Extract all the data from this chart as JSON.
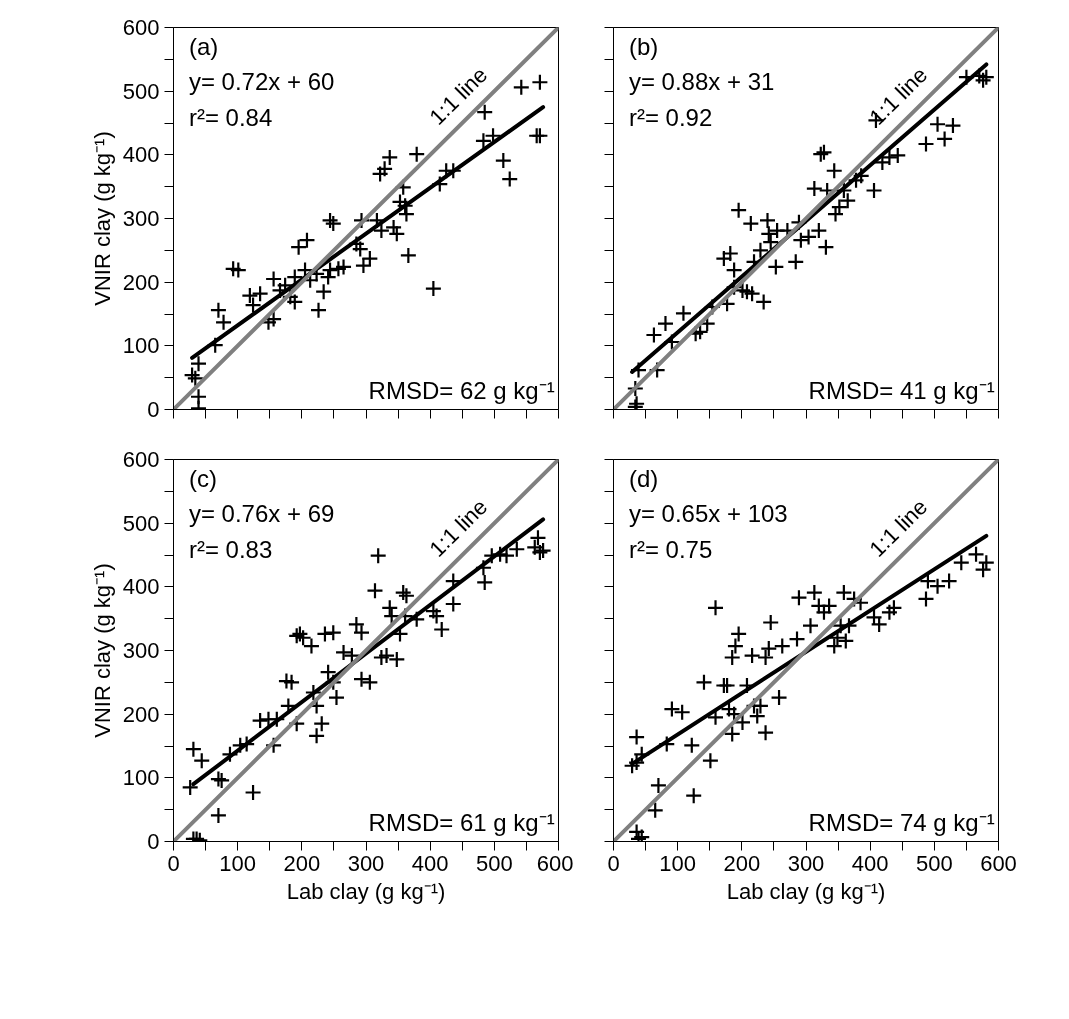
{
  "chart_data": [
    {
      "type": "scatter",
      "ylabel": "VNIR clay (g kg⁻¹)",
      "xlim": [
        0,
        600
      ],
      "ylim": [
        0,
        600
      ],
      "xticks": [
        0,
        {
          "value": 50,
          "label": null
        },
        100,
        {
          "value": 150,
          "label": null
        },
        200,
        {
          "value": 250,
          "label": null
        },
        300,
        {
          "value": 350,
          "label": null
        },
        400,
        {
          "value": 450,
          "label": null
        },
        500,
        {
          "value": 550,
          "label": null
        },
        600
      ],
      "yticks": [
        0,
        {
          "value": 50,
          "label": null
        },
        100,
        {
          "value": 150,
          "label": null
        },
        200,
        {
          "value": 250,
          "label": null
        },
        300,
        {
          "value": 350,
          "label": null
        },
        400,
        {
          "value": 450,
          "label": null
        },
        500,
        {
          "value": 550,
          "label": null
        },
        600
      ],
      "tick_labels": "y",
      "annotations": [
        "(a)",
        "y= 0.72x + 60",
        "r²= 0.84",
        "RMSD= 62 g kg⁻¹"
      ],
      "series": [
        {
          "marker": "cross",
          "color": "#000000",
          "x": [
            29,
            34,
            39,
            39,
            39,
            65,
            70,
            78,
            93,
            101,
            119,
            124,
            135,
            148,
            156,
            156,
            166,
            174,
            182,
            189,
            189,
            195,
            208,
            205,
            213,
            223,
            226,
            234,
            241,
            244,
            244,
            249,
            257,
            265,
            285,
            291,
            296,
            306,
            293,
            317,
            324,
            322,
            329,
            337,
            343,
            348,
            353,
            358,
            361,
            363,
            366,
            379,
            405,
            415,
            425,
            436,
            483,
            485,
            498,
            514,
            524,
            542,
            571,
            566,
            571
          ],
          "values": [
            54,
            49,
            72,
            2,
            20,
            101,
            156,
            137,
            221,
            219,
            179,
            164,
            182,
            137,
            142,
            205,
            187,
            195,
            177,
            169,
            208,
            255,
            266,
            219,
            203,
            213,
            156,
            185,
            208,
            219,
            297,
            292,
            221,
            224,
            260,
            252,
            226,
            237,
            297,
            297,
            281,
            370,
            378,
            396,
            286,
            276,
            326,
            349,
            320,
            307,
            242,
            401,
            190,
            354,
            375,
            375,
            422,
            467,
            430,
            391,
            362,
            506,
            514,
            430,
            430
          ]
        },
        {
          "type": "line",
          "color": "#000000",
          "x": [
            29,
            576
          ],
          "values": [
            81,
            475
          ]
        },
        {
          "type": "line",
          "name": "1:1 line",
          "color": "#808080",
          "x": [
            0,
            600
          ],
          "values": [
            0,
            600
          ]
        }
      ]
    },
    {
      "type": "scatter",
      "xlim": [
        0,
        600
      ],
      "ylim": [
        0,
        600
      ],
      "xticks": [
        0,
        {
          "value": 50,
          "label": null
        },
        100,
        {
          "value": 150,
          "label": null
        },
        200,
        {
          "value": 250,
          "label": null
        },
        300,
        {
          "value": 350,
          "label": null
        },
        400,
        {
          "value": 450,
          "label": null
        },
        500,
        {
          "value": 550,
          "label": null
        },
        600
      ],
      "yticks": [
        0,
        {
          "value": 50,
          "label": null
        },
        100,
        {
          "value": 150,
          "label": null
        },
        200,
        {
          "value": 250,
          "label": null
        },
        300,
        {
          "value": 350,
          "label": null
        },
        400,
        {
          "value": 450,
          "label": null
        },
        500,
        {
          "value": 550,
          "label": null
        },
        600
      ],
      "tick_labels": false,
      "annotations": [
        "(b)",
        "y= 0.88x + 31",
        "r²= 0.92",
        "RMSD= 41 g kg⁻¹"
      ],
      "series": [
        {
          "marker": "cross",
          "color": "#000000",
          "x": [
            34,
            36,
            34,
            39,
            68,
            63,
            81,
            91,
            109,
            128,
            135,
            146,
            154,
            177,
            188,
            201,
            208,
            216,
            234,
            195,
            172,
            182,
            188,
            214,
            219,
            229,
            240,
            242,
            245,
            253,
            255,
            271,
            284,
            289,
            292,
            304,
            320,
            331,
            313,
            323,
            328,
            333,
            344,
            346,
            352,
            359,
            365,
            378,
            386,
            406,
            419,
            430,
            443,
            409,
            487,
            505,
            516,
            529,
            550,
            570,
            576,
            581
          ],
          "values": [
            4,
            9,
            33,
            62,
            62,
            117,
            135,
            106,
            151,
            119,
            122,
            135,
            161,
            166,
            192,
            187,
            185,
            182,
            169,
            313,
            237,
            245,
            219,
            292,
            232,
            250,
            297,
            276,
            263,
            224,
            281,
            281,
            232,
            294,
            266,
            271,
            281,
            255,
            347,
            401,
            404,
            344,
            375,
            307,
            318,
            344,
            328,
            360,
            367,
            344,
            388,
            396,
            399,
            454,
            417,
            448,
            425,
            446,
            522,
            524,
            517,
            522
          ]
        },
        {
          "type": "line",
          "color": "#000000",
          "x": [
            29,
            581
          ],
          "values": [
            59,
            542
          ]
        },
        {
          "type": "line",
          "name": "1:1 line",
          "color": "#808080",
          "x": [
            0,
            600
          ],
          "values": [
            0,
            600
          ]
        }
      ]
    },
    {
      "type": "scatter",
      "xlabel": "Lab clay (g kg⁻¹)",
      "ylabel": "VNIR clay (g kg⁻¹)",
      "xlim": [
        0,
        600
      ],
      "ylim": [
        0,
        600
      ],
      "xticks": [
        0,
        {
          "value": 50,
          "label": null
        },
        100,
        {
          "value": 150,
          "label": null
        },
        200,
        {
          "value": 250,
          "label": null
        },
        300,
        {
          "value": 350,
          "label": null
        },
        400,
        {
          "value": 450,
          "label": null
        },
        500,
        {
          "value": 550,
          "label": null
        },
        600
      ],
      "yticks": [
        0,
        {
          "value": 50,
          "label": null
        },
        100,
        {
          "value": 150,
          "label": null
        },
        200,
        {
          "value": 250,
          "label": null
        },
        300,
        {
          "value": 350,
          "label": null
        },
        400,
        {
          "value": 450,
          "label": null
        },
        500,
        {
          "value": 550,
          "label": null
        },
        600
      ],
      "annotations": [
        "(c)",
        "y= 0.76x + 69",
        "r²= 0.83",
        "RMSD= 61 g kg⁻¹"
      ],
      "series": [
        {
          "marker": "cross",
          "color": "#000000",
          "x": [
            31,
            36,
            41,
            26,
            31,
            44,
            70,
            70,
            75,
            88,
            104,
            114,
            124,
            135,
            148,
            156,
            161,
            176,
            184,
            192,
            179,
            192,
            197,
            202,
            215,
            218,
            223,
            231,
            223,
            236,
            249,
            241,
            249,
            254,
            265,
            278,
            285,
            293,
            293,
            306,
            319,
            314,
            324,
            332,
            337,
            340,
            348,
            353,
            358,
            363,
            361,
            379,
            405,
            410,
            418,
            436,
            436,
            483,
            485,
            496,
            509,
            519,
            535,
            563,
            568,
            571,
            576
          ],
          "values": [
            4,
            4,
            2,
            85,
            145,
            127,
            41,
            98,
            96,
            137,
            151,
            153,
            77,
            190,
            192,
            151,
            192,
            252,
            250,
            185,
            213,
            323,
            326,
            320,
            307,
            234,
            213,
            185,
            166,
            326,
            328,
            266,
            250,
            226,
            297,
            292,
            341,
            328,
            255,
            250,
            449,
            394,
            289,
            292,
            367,
            354,
            286,
            326,
            391,
            386,
            354,
            349,
            362,
            354,
            333,
            409,
            373,
            430,
            407,
            449,
            451,
            449,
            459,
            462,
            477,
            454,
            457
          ]
        },
        {
          "type": "line",
          "color": "#000000",
          "x": [
            31,
            576
          ],
          "values": [
            90,
            506
          ]
        },
        {
          "type": "line",
          "name": "1:1 line",
          "color": "#808080",
          "x": [
            0,
            600
          ],
          "values": [
            0,
            600
          ]
        }
      ]
    },
    {
      "type": "scatter",
      "xlabel": "Lab clay (g kg⁻¹)",
      "xlim": [
        0,
        600
      ],
      "ylim": [
        0,
        600
      ],
      "xticks": [
        0,
        {
          "value": 50,
          "label": null
        },
        100,
        {
          "value": 150,
          "label": null
        },
        200,
        {
          "value": 250,
          "label": null
        },
        300,
        {
          "value": 350,
          "label": null
        },
        400,
        {
          "value": 450,
          "label": null
        },
        500,
        {
          "value": 550,
          "label": null
        },
        600
      ],
      "yticks": [
        0,
        {
          "value": 50,
          "label": null
        },
        100,
        {
          "value": 150,
          "label": null
        },
        200,
        {
          "value": 250,
          "label": null
        },
        300,
        {
          "value": 350,
          "label": null
        },
        400,
        {
          "value": 450,
          "label": null
        },
        500,
        {
          "value": 550,
          "label": null
        },
        600
      ],
      "tick_labels": "x",
      "annotations": [
        "(d)",
        "y= 0.65x + 103",
        "r²= 0.75",
        "RMSD= 74 g kg⁻¹"
      ],
      "series": [
        {
          "marker": "cross",
          "color": "#000000",
          "x": [
            29,
            36,
            36,
            36,
            39,
            44,
            44,
            65,
            70,
            83,
            91,
            107,
            125,
            122,
            151,
            141,
            159,
            159,
            172,
            177,
            180,
            185,
            188,
            185,
            190,
            195,
            201,
            208,
            216,
            219,
            224,
            229,
            237,
            237,
            242,
            245,
            258,
            263,
            286,
            289,
            307,
            313,
            320,
            328,
            336,
            344,
            349,
            354,
            359,
            362,
            367,
            375,
            385,
            406,
            414,
            430,
            437,
            487,
            490,
            505,
            523,
            542,
            565,
            576,
            581
          ],
          "values": [
            119,
            124,
            164,
            15,
            4,
            7,
            137,
            49,
            88,
            153,
            208,
            203,
            72,
            151,
            127,
            250,
            367,
            195,
            245,
            245,
            208,
            169,
            200,
            289,
            307,
            326,
            187,
            245,
            292,
            213,
            197,
            213,
            171,
            289,
            303,
            344,
            226,
            307,
            318,
            383,
            339,
            391,
            370,
            360,
            370,
            307,
            320,
            339,
            391,
            315,
            339,
            381,
            375,
            352,
            341,
            360,
            367,
            381,
            409,
            401,
            409,
            438,
            451,
            427,
            438
          ]
        },
        {
          "type": "line",
          "color": "#000000",
          "x": [
            29,
            581
          ],
          "values": [
            122,
            480
          ]
        },
        {
          "type": "line",
          "name": "1:1 line",
          "color": "#808080",
          "x": [
            0,
            600
          ],
          "values": [
            0,
            600
          ]
        }
      ]
    }
  ]
}
